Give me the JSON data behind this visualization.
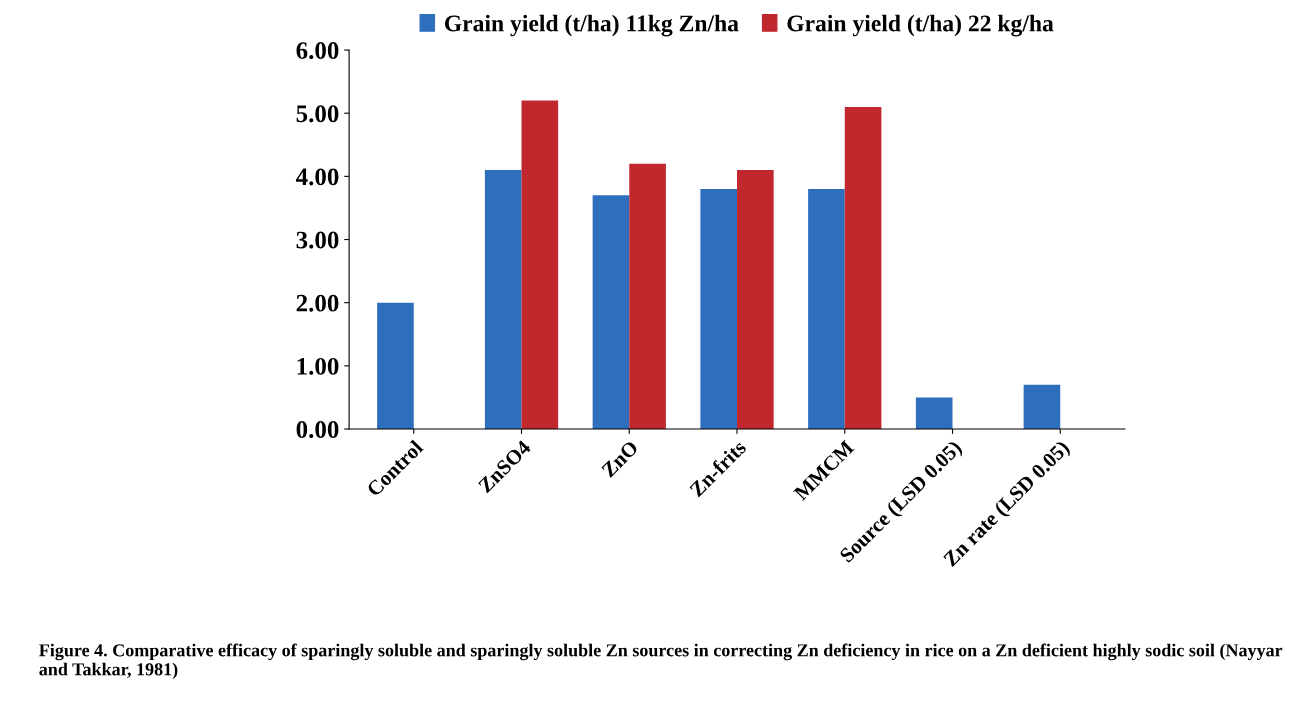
{
  "chart_data": {
    "type": "bar",
    "categories": [
      "Control",
      "ZnSO4",
      "ZnO",
      "Zn-frits",
      "MMCM",
      "Source (LSD 0.05)",
      "Zn rate (LSD 0.05)"
    ],
    "series": [
      {
        "name": "Grain yield (t/ha) 11kg Zn/ha",
        "color": "#2e6fbd",
        "values": [
          2.0,
          4.1,
          3.7,
          3.8,
          3.8,
          0.5,
          0.7
        ]
      },
      {
        "name": "Grain yield (t/ha) 22 kg/ha",
        "color": "#c0282d",
        "values": [
          null,
          5.2,
          4.2,
          4.1,
          5.1,
          null,
          null
        ]
      }
    ],
    "ylim": [
      0,
      6
    ],
    "yticks": [
      {
        "value": 0,
        "label": "0.00"
      },
      {
        "value": 1,
        "label": "1.00"
      },
      {
        "value": 2,
        "label": "2.00"
      },
      {
        "value": 3,
        "label": "3.00"
      },
      {
        "value": 4,
        "label": "4.00"
      },
      {
        "value": 5,
        "label": "5.00"
      },
      {
        "value": 6,
        "label": "6.00"
      }
    ],
    "grid": false,
    "legend": "top",
    "annotations": [
      "Figure 4. Comparative efficacy of sparingly soluble and sparingly soluble Zn sources in correcting Zn deficiency in rice on a Zn deficient highly sodic soil (Nayyar and Takkar, 1981)"
    ]
  }
}
